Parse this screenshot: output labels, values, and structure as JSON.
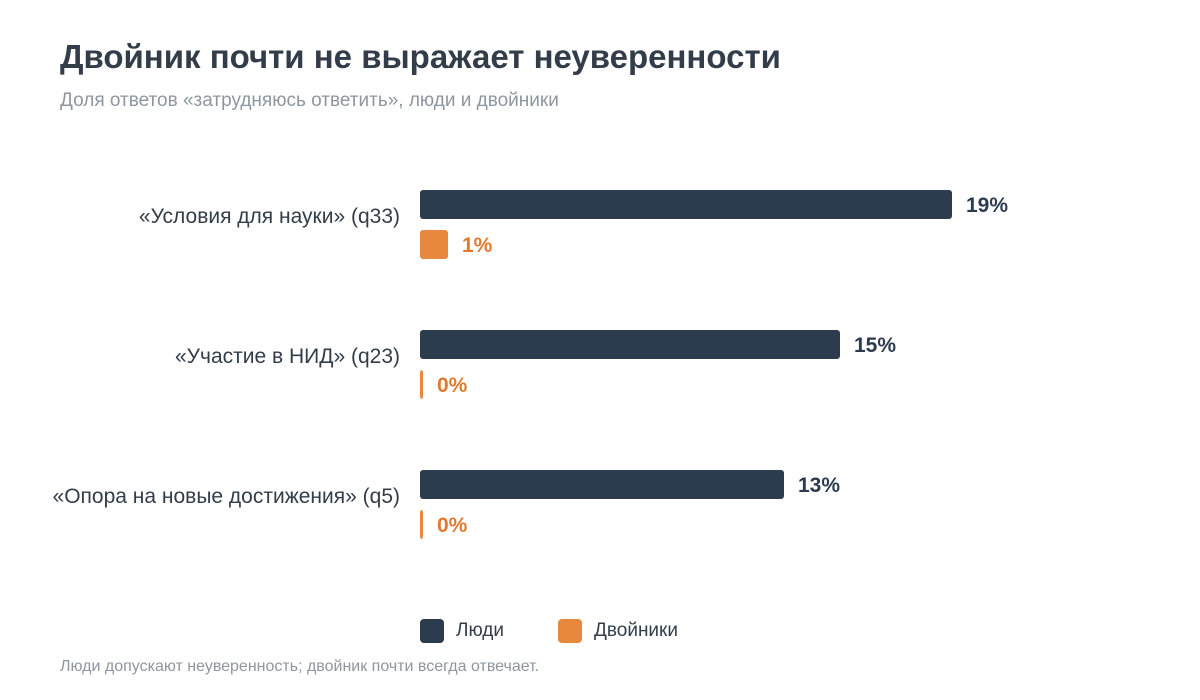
{
  "chart_data": {
    "type": "bar",
    "orientation": "horizontal",
    "title": "Двойник почти не выражает неуверенности",
    "subtitle": "Доля ответов «затрудняюсь ответить», люди и двойники",
    "categories": [
      "«Условия для науки» (q33)",
      "«Участие в НИД» (q23)",
      "«Опора на новые достижения» (q5)"
    ],
    "series": [
      {
        "name": "Люди",
        "color": "#2d3b4e",
        "values": [
          19,
          15,
          13
        ],
        "labels": [
          "19%",
          "15%",
          "13%"
        ]
      },
      {
        "name": "Двойники",
        "color": "#e8883e",
        "values": [
          1,
          0,
          0
        ],
        "labels": [
          "1%",
          "0%",
          "0%"
        ]
      }
    ],
    "value_unit": "%",
    "xlim": [
      0,
      20
    ],
    "grid": false,
    "legend_position": "bottom"
  },
  "footnote": "Люди допускают неуверенность; двойник почти всегда отвечает."
}
